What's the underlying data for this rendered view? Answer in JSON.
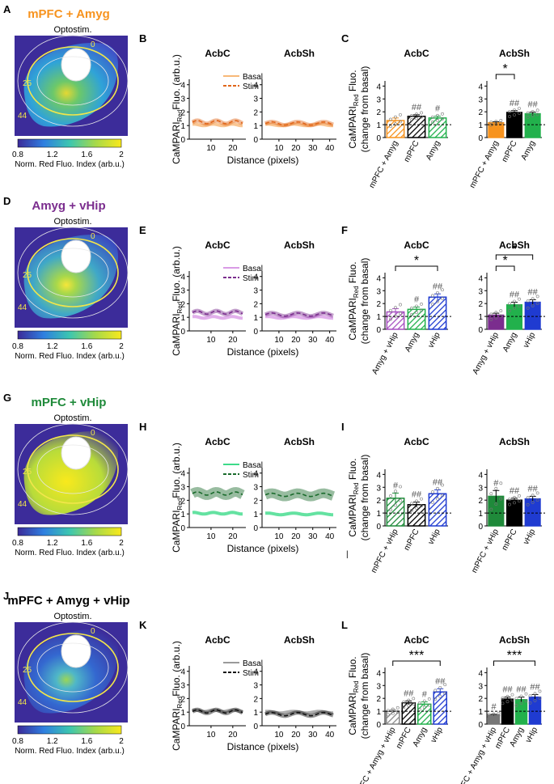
{
  "labels": {
    "optostim": "Optostim.",
    "norm_red": "Norm. Red Fluo. Index (arb.u.)",
    "distance": "Distance (pixels)",
    "y_line": "CaMPARI",
    "y_line_sub": "Red",
    "y_line_rest": "Fluo. (arb.u.)",
    "y_bar": "CaMPARI",
    "y_bar_sub": "Red",
    "y_bar_rest": " Fluo.",
    "y_bar2": "(change from basal)",
    "acbc": "AcbC",
    "acbsh": "AcbSh",
    "basal": "Basal",
    "stim": "Stim",
    "colorbar_ticks": [
      "0.8",
      "1.2",
      "1.6",
      "2"
    ],
    "roi_labels": [
      "0",
      "25",
      "44"
    ],
    "dist_ticks_c": [
      "10",
      "20"
    ],
    "dist_ticks_sh": [
      "10",
      "20",
      "30",
      "40"
    ],
    "y_ticks": [
      "0",
      "1",
      "2",
      "3",
      "4"
    ],
    "one_hash": "#",
    "two_hash": "##",
    "one_star": "*",
    "three_star": "***",
    "stray_mark": "|"
  },
  "panels": [
    {
      "row": 0,
      "letters": [
        "A",
        "B",
        "C"
      ],
      "title": "mPFC + Amyg",
      "color": "#f7931e",
      "stripe": "#f7931e",
      "map": "orange",
      "ctrl": "mPFC + Amyg",
      "bars_c": [
        {
          "label": "mPFC + Amyg",
          "value": 1.32,
          "err": 0.2,
          "color": "#f7931e",
          "hatch": true,
          "sig": ""
        },
        {
          "label": "mPFC",
          "value": 1.65,
          "err": 0.12,
          "color": "#000000",
          "hatch": true,
          "sig": "##"
        },
        {
          "label": "Amyg",
          "value": 1.52,
          "err": 0.14,
          "color": "#22b14c",
          "hatch": true,
          "sig": "#"
        }
      ],
      "bars_sh": [
        {
          "label": "mPFC + Amyg",
          "value": 1.15,
          "err": 0.08,
          "color": "#f7931e",
          "hatch": false,
          "sig": ""
        },
        {
          "label": "mPFC",
          "value": 1.95,
          "err": 0.14,
          "color": "#000000",
          "hatch": false,
          "sig": "##"
        },
        {
          "label": "Amyg",
          "value": 1.85,
          "err": 0.12,
          "color": "#22b14c",
          "hatch": false,
          "sig": "##"
        }
      ],
      "stars_c": [],
      "stars_sh": [
        {
          "from": 0,
          "to": 1,
          "text": "*"
        }
      ],
      "xlabels_c": [
        "mPFC + Amyg",
        "mPFC",
        "Amyg"
      ],
      "xlabels_sh": [
        "mPFC + Amyg",
        "mPFC",
        "Amyg"
      ],
      "line_basal": "#f7b878",
      "line_stim": "#e0661a",
      "c_basal": 1.05,
      "c_stim": 1.25,
      "sh_basal": 1.05,
      "sh_stim": 1.15
    },
    {
      "row": 1,
      "letters": [
        "D",
        "E",
        "F"
      ],
      "title": "Amyg + vHip",
      "color": "#7b2d8e",
      "map": "purple",
      "bars_c": [
        {
          "label": "Amyg + vHip",
          "value": 1.35,
          "err": 0.25,
          "color": "#a64fc0",
          "hatch": true,
          "sig": ""
        },
        {
          "label": "Amyg",
          "value": 1.55,
          "err": 0.18,
          "color": "#22b14c",
          "hatch": true,
          "sig": "#"
        },
        {
          "label": "vHip",
          "value": 2.5,
          "err": 0.25,
          "color": "#1f3bd1",
          "hatch": true,
          "sig": "##"
        }
      ],
      "bars_sh": [
        {
          "label": "Amyg + vHip",
          "value": 1.1,
          "err": 0.15,
          "color": "#7b2d8e",
          "hatch": false,
          "sig": ""
        },
        {
          "label": "Amyg",
          "value": 1.9,
          "err": 0.2,
          "color": "#22b14c",
          "hatch": false,
          "sig": "##"
        },
        {
          "label": "vHip",
          "value": 2.1,
          "err": 0.2,
          "color": "#1f3bd1",
          "hatch": false,
          "sig": "##"
        }
      ],
      "stars_c": [
        {
          "from": 0,
          "to": 2,
          "text": "*"
        }
      ],
      "stars_sh": [
        {
          "from": 0,
          "to": 1,
          "text": "*"
        },
        {
          "from": 0,
          "to": 2,
          "text": "*"
        }
      ],
      "xlabels_c": [
        "Amyg + vHip",
        "Amyg",
        "vHip"
      ],
      "xlabels_sh": [
        "Amyg + vHip",
        "Amyg",
        "vHip"
      ],
      "line_basal": "#d99be6",
      "line_stim": "#7b2d8e",
      "c_basal": 1.0,
      "c_stim": 1.35,
      "sh_basal": 1.0,
      "sh_stim": 1.2
    },
    {
      "row": 2,
      "letters": [
        "G",
        "H",
        "I"
      ],
      "title": "mPFC + vHip",
      "color": "#1f8a3a",
      "map": "green",
      "bars_c": [
        {
          "label": "mPFC + vHip",
          "value": 2.15,
          "err": 0.4,
          "color": "#1f8a3a",
          "hatch": true,
          "sig": "#"
        },
        {
          "label": "mPFC",
          "value": 1.65,
          "err": 0.2,
          "color": "#000000",
          "hatch": true,
          "sig": "##"
        },
        {
          "label": "vHip",
          "value": 2.5,
          "err": 0.3,
          "color": "#1f3bd1",
          "hatch": true,
          "sig": "##"
        }
      ],
      "bars_sh": [
        {
          "label": "mPFC + vHip",
          "value": 2.3,
          "err": 0.45,
          "color": "#1f8a3a",
          "hatch": false,
          "sig": "#"
        },
        {
          "label": "mPFC",
          "value": 2.0,
          "err": 0.15,
          "color": "#000000",
          "hatch": false,
          "sig": "##"
        },
        {
          "label": "vHip",
          "value": 2.1,
          "err": 0.2,
          "color": "#1f3bd1",
          "hatch": false,
          "sig": "##"
        }
      ],
      "stars_c": [],
      "stars_sh": [],
      "xlabels_c": [
        "mPFC + vHip",
        "mPFC",
        "vHip"
      ],
      "xlabels_sh": [
        "mPFC + vHip",
        "mPFC",
        "vHip"
      ],
      "line_basal": "#3ddb8a",
      "line_stim": "#1a6b2c",
      "c_basal": 1.05,
      "c_stim": 2.5,
      "sh_basal": 1.0,
      "sh_stim": 2.4
    },
    {
      "row": 3,
      "letters": [
        "J",
        "K",
        "L"
      ],
      "title": "mPFC + Amyg + vHip",
      "color": "#000000",
      "map": "blue",
      "bars_c": [
        {
          "label": "mPFC + Amyg + vHip",
          "value": 1.0,
          "err": 0.12,
          "color": "#888888",
          "hatch": true,
          "sig": ""
        },
        {
          "label": "mPFC",
          "value": 1.65,
          "err": 0.15,
          "color": "#000000",
          "hatch": true,
          "sig": "##"
        },
        {
          "label": "Amyg",
          "value": 1.55,
          "err": 0.18,
          "color": "#22b14c",
          "hatch": true,
          "sig": "#"
        },
        {
          "label": "vHip",
          "value": 2.5,
          "err": 0.25,
          "color": "#1f3bd1",
          "hatch": true,
          "sig": "##"
        }
      ],
      "bars_sh": [
        {
          "label": "mPFC + Amyg + vHip",
          "value": 0.7,
          "err": 0.06,
          "color": "#777777",
          "hatch": false,
          "sig": "#"
        },
        {
          "label": "mPFC",
          "value": 1.95,
          "err": 0.15,
          "color": "#000000",
          "hatch": false,
          "sig": "##"
        },
        {
          "label": "Amyg",
          "value": 1.9,
          "err": 0.2,
          "color": "#22b14c",
          "hatch": false,
          "sig": "##"
        },
        {
          "label": "vHip",
          "value": 2.1,
          "err": 0.2,
          "color": "#1f3bd1",
          "hatch": false,
          "sig": "##"
        }
      ],
      "stars_c": [
        {
          "from": 0,
          "to": 3,
          "text": "***"
        }
      ],
      "stars_sh": [
        {
          "from": 0,
          "to": 3,
          "text": "***"
        }
      ],
      "xlabels_c": [
        "mPFC + Amyg + vHip",
        "mPFC",
        "Amyg",
        "vHip"
      ],
      "xlabels_sh": [
        "mPFC + Amyg + vHip",
        "mPFC",
        "Amyg",
        "vHip"
      ],
      "line_basal": "#9a9a9a",
      "line_stim": "#111111",
      "c_basal": 1.1,
      "c_stim": 1.05,
      "sh_basal": 1.0,
      "sh_stim": 0.85
    }
  ],
  "chart_data": [
    {
      "type": "bar",
      "title": "mPFC + Amyg — AcbC",
      "categories": [
        "mPFC + Amyg",
        "mPFC",
        "Amyg"
      ],
      "values": [
        1.32,
        1.65,
        1.52
      ],
      "ylabel": "CaMPARI Red Fluo. (change from basal)",
      "ylim": [
        0,
        4
      ]
    },
    {
      "type": "bar",
      "title": "mPFC + Amyg — AcbSh",
      "categories": [
        "mPFC + Amyg",
        "mPFC",
        "Amyg"
      ],
      "values": [
        1.15,
        1.95,
        1.85
      ],
      "ylim": [
        0,
        4
      ]
    },
    {
      "type": "bar",
      "title": "Amyg + vHip — AcbC",
      "categories": [
        "Amyg + vHip",
        "Amyg",
        "vHip"
      ],
      "values": [
        1.35,
        1.55,
        2.5
      ],
      "ylim": [
        0,
        4
      ]
    },
    {
      "type": "bar",
      "title": "Amyg + vHip — AcbSh",
      "categories": [
        "Amyg + vHip",
        "Amyg",
        "vHip"
      ],
      "values": [
        1.1,
        1.9,
        2.1
      ],
      "ylim": [
        0,
        4
      ]
    },
    {
      "type": "bar",
      "title": "mPFC + vHip — AcbC",
      "categories": [
        "mPFC + vHip",
        "mPFC",
        "vHip"
      ],
      "values": [
        2.15,
        1.65,
        2.5
      ],
      "ylim": [
        0,
        4
      ]
    },
    {
      "type": "bar",
      "title": "mPFC + vHip — AcbSh",
      "categories": [
        "mPFC + vHip",
        "mPFC",
        "vHip"
      ],
      "values": [
        2.3,
        2.0,
        2.1
      ],
      "ylim": [
        0,
        4
      ]
    },
    {
      "type": "bar",
      "title": "mPFC + Amyg + vHip — AcbC",
      "categories": [
        "mPFC + Amyg + vHip",
        "mPFC",
        "Amyg",
        "vHip"
      ],
      "values": [
        1.0,
        1.65,
        1.55,
        2.5
      ],
      "ylim": [
        0,
        4
      ]
    },
    {
      "type": "bar",
      "title": "mPFC + Amyg + vHip — AcbSh",
      "categories": [
        "mPFC + Amyg + vHip",
        "mPFC",
        "Amyg",
        "vHip"
      ],
      "values": [
        0.7,
        1.95,
        1.9,
        2.1
      ],
      "ylim": [
        0,
        4
      ]
    },
    {
      "type": "line",
      "title": "Fluorescence along distance",
      "xlabel": "Distance (pixels)",
      "ylabel": "CaMPARI Red Fluo. (arb.u.)",
      "ylim": [
        0,
        4
      ],
      "series": [
        {
          "name": "mPFC + Amyg AcbC Basal",
          "values": [
            1.05
          ]
        },
        {
          "name": "mPFC + Amyg AcbC Stim",
          "values": [
            1.25
          ]
        },
        {
          "name": "Amyg + vHip AcbC Basal",
          "values": [
            1.0
          ]
        },
        {
          "name": "Amyg + vHip AcbC Stim",
          "values": [
            1.35
          ]
        },
        {
          "name": "mPFC + vHip AcbC Basal",
          "values": [
            1.05
          ]
        },
        {
          "name": "mPFC + vHip AcbC Stim",
          "values": [
            2.5
          ]
        },
        {
          "name": "mPFC + Amyg + vHip AcbC Basal",
          "values": [
            1.1
          ]
        },
        {
          "name": "mPFC + Amyg + vHip AcbC Stim",
          "values": [
            1.05
          ]
        }
      ]
    }
  ]
}
